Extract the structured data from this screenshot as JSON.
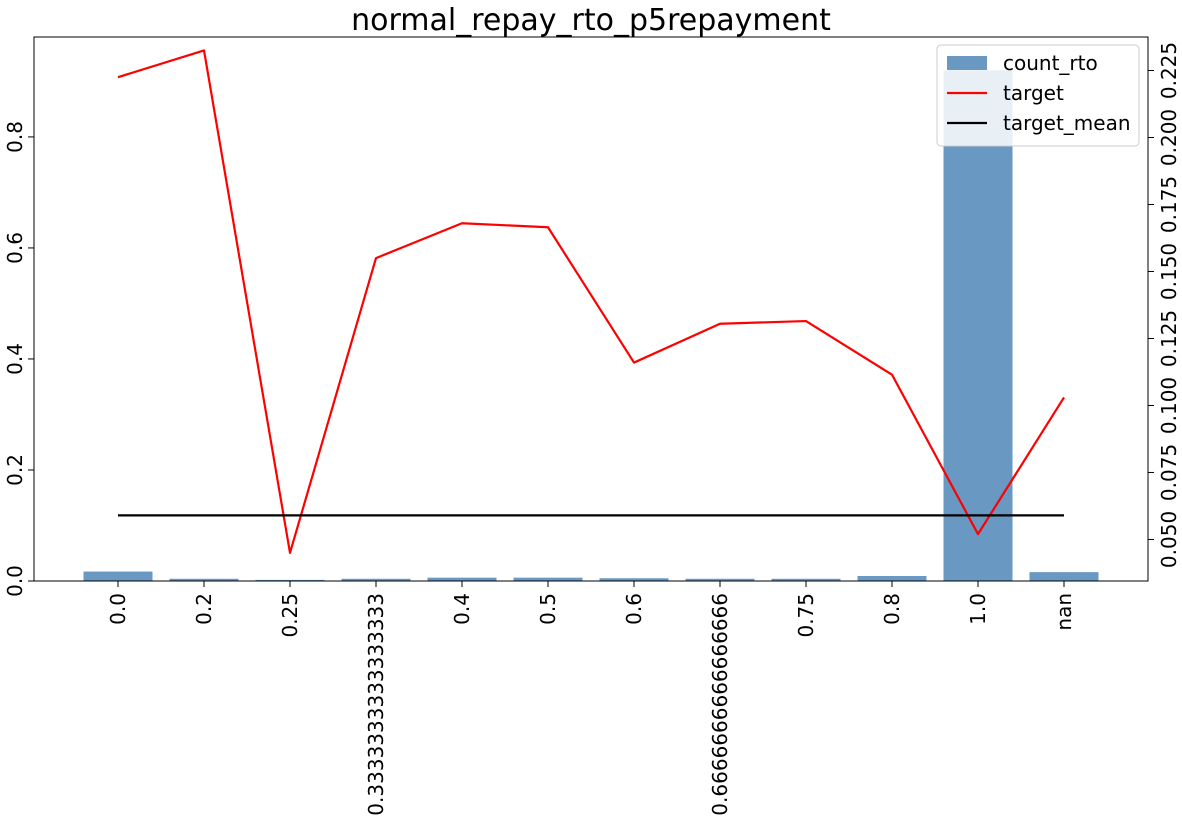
{
  "chart_data": {
    "type": "bar",
    "title": "normal_repay_rto_p5repayment",
    "xlabel": "",
    "ylabel": "",
    "categories": [
      "0.0",
      "0.2",
      "0.25",
      "0.3333333333333333",
      "0.4",
      "0.5",
      "0.6",
      "0.6666666666666666",
      "0.75",
      "0.8",
      "1.0",
      "nan"
    ],
    "series": [
      {
        "name": "count_rto",
        "type": "bar",
        "axis": "left",
        "color": "#4f86b8",
        "values": [
          0.017,
          0.004,
          0.002,
          0.004,
          0.006,
          0.006,
          0.005,
          0.004,
          0.004,
          0.009,
          0.92,
          0.016
        ]
      },
      {
        "name": "target",
        "type": "line",
        "axis": "right",
        "color": "#ff0000",
        "values": [
          0.2225,
          0.2325,
          0.045,
          0.155,
          0.168,
          0.1665,
          0.116,
          0.1305,
          0.1315,
          0.1115,
          0.052,
          0.103
        ]
      },
      {
        "name": "target_mean",
        "type": "line",
        "axis": "right",
        "color": "#000000",
        "values": [
          0.059,
          0.059,
          0.059,
          0.059,
          0.059,
          0.059,
          0.059,
          0.059,
          0.059,
          0.059,
          0.059,
          0.059
        ]
      }
    ],
    "y_left": {
      "ylim": [
        0,
        0.98
      ],
      "ticks": [
        0.0,
        0.2,
        0.4,
        0.6,
        0.8
      ],
      "tick_labels": [
        "0.0",
        "0.2",
        "0.4",
        "0.6",
        "0.8"
      ]
    },
    "y_right": {
      "ylim": [
        0.0345,
        0.2375
      ],
      "ticks": [
        0.05,
        0.075,
        0.1,
        0.125,
        0.15,
        0.175,
        0.2,
        0.225
      ],
      "tick_labels": [
        "0.050",
        "0.075",
        "0.100",
        "0.125",
        "0.150",
        "0.175",
        "0.200",
        "0.225"
      ]
    },
    "legend": {
      "placement": "top-right",
      "entries": [
        "count_rto",
        "target",
        "target_mean"
      ]
    },
    "grid": false
  }
}
